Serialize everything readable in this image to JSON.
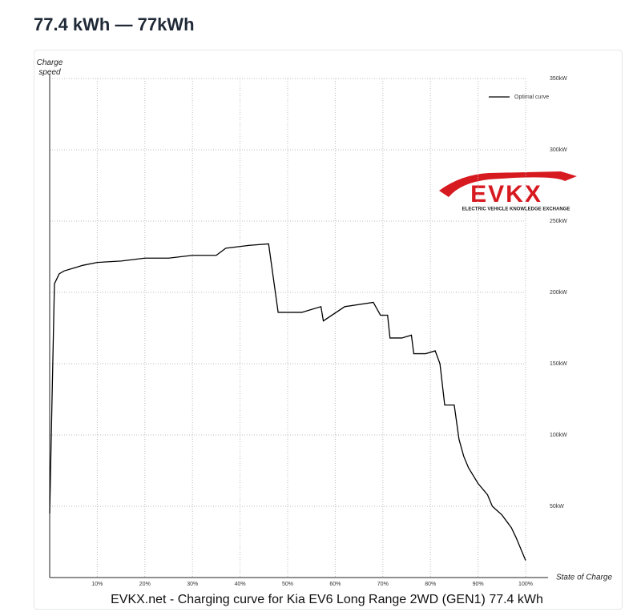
{
  "heading": "77.4 kWh — 77kWh",
  "chart_data": {
    "type": "line",
    "caption": "EVKX.net - Charging curve for Kia EV6 Long Range 2WD (GEN1) 77.4 kWh",
    "x_label": "State of Charge",
    "y_label": "Charge speed",
    "logo": {
      "name": "EVKX",
      "tagline": "ELECTRIC VEHICLE KNOWLEDGE EXCHANGE"
    },
    "legend": "top-right",
    "grid": true,
    "xlim": [
      0,
      100
    ],
    "ylim": [
      0,
      350
    ],
    "xticks": [
      {
        "value": 10,
        "label": "10%"
      },
      {
        "value": 20,
        "label": "20%"
      },
      {
        "value": 30,
        "label": "30%"
      },
      {
        "value": 40,
        "label": "40%"
      },
      {
        "value": 50,
        "label": "50%"
      },
      {
        "value": 60,
        "label": "60%"
      },
      {
        "value": 70,
        "label": "70%"
      },
      {
        "value": 80,
        "label": "80%"
      },
      {
        "value": 90,
        "label": "90%"
      },
      {
        "value": 100,
        "label": "100%"
      }
    ],
    "yticks": [
      {
        "value": 50,
        "label": "50kW"
      },
      {
        "value": 100,
        "label": "100kW"
      },
      {
        "value": 150,
        "label": "150kW"
      },
      {
        "value": 200,
        "label": "200kW"
      },
      {
        "value": 250,
        "label": "250kW"
      },
      {
        "value": 300,
        "label": "300kW"
      },
      {
        "value": 350,
        "label": "350kW"
      }
    ],
    "x": [
      0,
      1,
      2,
      3,
      5,
      7,
      10,
      15,
      20,
      25,
      30,
      35,
      37,
      42,
      46,
      48,
      53,
      54,
      57,
      57.5,
      62,
      68,
      69.5,
      71,
      71.5,
      74,
      76,
      76.5,
      79,
      81,
      82,
      83,
      85,
      86,
      87,
      88,
      90,
      92,
      93,
      94,
      95,
      97,
      98,
      99,
      100
    ],
    "series": [
      {
        "name": "Optimal curve",
        "color": "#000000",
        "values": [
          45,
          206,
          213,
          215,
          217,
          219,
          221,
          222,
          224,
          224,
          226,
          226,
          231,
          233,
          234,
          186,
          186,
          187,
          190,
          180,
          190,
          193,
          184,
          184,
          168,
          168,
          170,
          157,
          157,
          159,
          150,
          121,
          121,
          97,
          85,
          77,
          66,
          58,
          50,
          47,
          44,
          35,
          28,
          20,
          12
        ]
      }
    ]
  }
}
